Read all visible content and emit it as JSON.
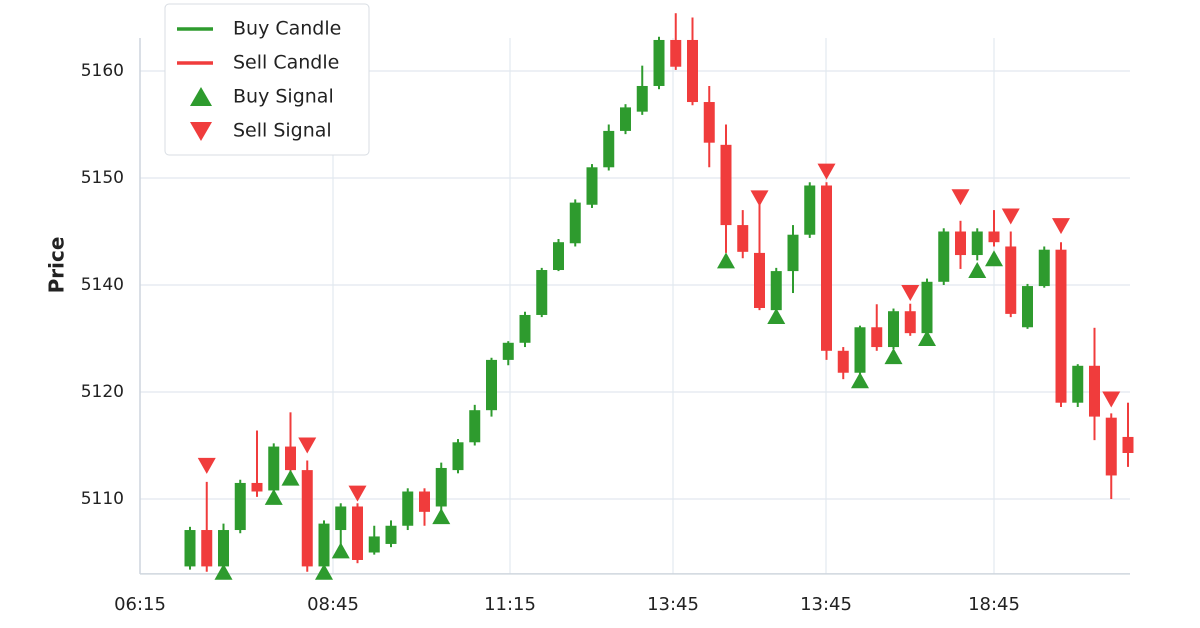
{
  "chart_data": {
    "type": "candlestick",
    "ylabel": "Price",
    "legend": "upper left",
    "grid": true,
    "ylim": [
      5103,
      5166
    ],
    "yticks": [
      5110,
      5120,
      5140,
      5150,
      5160
    ],
    "xticks": [
      "06:15",
      "08:45",
      "11:15",
      "13:45",
      "13:45",
      "18:45"
    ],
    "candle_legend": [
      {
        "name": "Buy Candle",
        "color": "#2e9b2e"
      },
      {
        "name": "Sell Candle",
        "color": "#f03c3c"
      }
    ],
    "open": [
      5103.7,
      5107.1,
      5103.7,
      5107.1,
      5111.5,
      5110.8,
      5114.9,
      5112.7,
      5103.7,
      5107.1,
      5109.3,
      5105.0,
      5105.8,
      5107.5,
      5110.7,
      5109.3,
      5112.7,
      5115.3,
      5118.3,
      5126.0,
      5129.2,
      5134.4,
      5141.4,
      5143.9,
      5147.5,
      5151.0,
      5154.4,
      5156.2,
      5158.6,
      5162.9,
      5162.9,
      5157.1,
      5153.1,
      5145.6,
      5143.0,
      5135.3,
      5141.3,
      5144.7,
      5149.3,
      5127.7,
      5123.6,
      5132.1,
      5128.4,
      5135.1,
      5131.0,
      5140.3,
      5145.0,
      5142.8,
      5145.0,
      5143.6,
      5132.1,
      5139.8,
      5143.3,
      5119.0,
      5124.9,
      5117.6,
      5115.8
    ],
    "high": [
      5107.4,
      5111.6,
      5107.7,
      5111.8,
      5116.4,
      5115.2,
      5118.1,
      5113.6,
      5108.0,
      5109.6,
      5109.6,
      5107.5,
      5108.0,
      5111.0,
      5111.0,
      5113.4,
      5115.6,
      5118.8,
      5126.4,
      5129.5,
      5135.0,
      5141.6,
      5144.3,
      5148.0,
      5151.3,
      5155.0,
      5156.9,
      5160.5,
      5163.2,
      5165.4,
      5165.0,
      5158.6,
      5155.0,
      5147.0,
      5148.0,
      5141.6,
      5145.6,
      5149.6,
      5149.6,
      5128.4,
      5132.4,
      5136.4,
      5135.6,
      5136.5,
      5140.6,
      5145.3,
      5146.0,
      5145.3,
      5147.0,
      5145.0,
      5140.1,
      5143.6,
      5144.0,
      5125.2,
      5132.0,
      5118.0,
      5119.0
    ],
    "low": [
      5103.4,
      5103.2,
      5103.2,
      5106.8,
      5110.2,
      5110.5,
      5112.1,
      5103.2,
      5103.4,
      5105.0,
      5104.0,
      5104.8,
      5105.5,
      5107.1,
      5107.5,
      5108.8,
      5112.4,
      5115.0,
      5117.7,
      5125.0,
      5128.4,
      5134.0,
      5141.3,
      5143.6,
      5147.2,
      5150.7,
      5154.1,
      5155.9,
      5158.3,
      5160.1,
      5156.8,
      5151.0,
      5143.0,
      5142.5,
      5135.3,
      5133.0,
      5138.5,
      5144.4,
      5126.0,
      5122.4,
      5123.2,
      5127.7,
      5128.0,
      5130.5,
      5130.5,
      5140.0,
      5141.5,
      5142.3,
      5143.6,
      5134.0,
      5131.8,
      5139.5,
      5118.6,
      5118.6,
      5115.5,
      5110.0,
      5113.0
    ],
    "close": [
      5107.1,
      5103.7,
      5107.1,
      5111.5,
      5110.7,
      5114.9,
      5112.7,
      5103.7,
      5107.7,
      5109.3,
      5104.3,
      5106.5,
      5107.5,
      5110.7,
      5108.8,
      5112.9,
      5115.3,
      5118.3,
      5126.0,
      5129.2,
      5134.4,
      5141.4,
      5144.0,
      5147.7,
      5151.0,
      5154.4,
      5156.6,
      5158.6,
      5162.9,
      5160.4,
      5157.1,
      5153.3,
      5145.6,
      5143.1,
      5135.7,
      5141.3,
      5144.7,
      5149.3,
      5127.7,
      5123.6,
      5132.1,
      5128.4,
      5135.1,
      5131.0,
      5140.3,
      5145.0,
      5142.8,
      5145.0,
      5144.0,
      5134.6,
      5139.8,
      5143.3,
      5119.0,
      5124.9,
      5117.7,
      5112.2,
      5114.3
    ],
    "signals": [
      {
        "name": "Buy Signal",
        "color": "#2e9b2e",
        "marker": "up",
        "values": [
          null,
          null,
          5103.2,
          null,
          null,
          5110.2,
          5112.0,
          null,
          5103.2,
          5105.2,
          null,
          null,
          null,
          null,
          null,
          5108.4,
          null,
          null,
          null,
          null,
          null,
          null,
          null,
          null,
          null,
          null,
          null,
          null,
          null,
          null,
          null,
          null,
          5142.3,
          null,
          null,
          5134.2,
          null,
          null,
          null,
          null,
          5122.2,
          null,
          5126.7,
          null,
          5130.1,
          null,
          null,
          5141.4,
          5142.5,
          null,
          null,
          null,
          null,
          null,
          null,
          null,
          null
        ]
      },
      {
        "name": "Sell Signal",
        "color": "#f03c3c",
        "marker": "down",
        "values": [
          null,
          5113.1,
          null,
          null,
          null,
          null,
          null,
          5115.0,
          null,
          null,
          5110.5,
          null,
          null,
          null,
          null,
          null,
          null,
          null,
          null,
          null,
          null,
          null,
          null,
          null,
          null,
          null,
          null,
          null,
          null,
          null,
          null,
          null,
          null,
          null,
          5148.1,
          null,
          null,
          null,
          5150.6,
          null,
          null,
          null,
          null,
          5138.5,
          null,
          null,
          5148.2,
          null,
          null,
          5146.4,
          null,
          null,
          5145.5,
          null,
          null,
          5119.3,
          null
        ]
      }
    ]
  }
}
